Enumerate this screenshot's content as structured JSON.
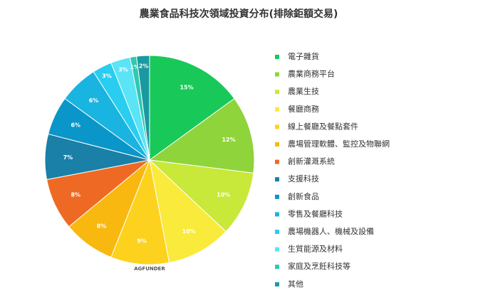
{
  "chart_data": {
    "type": "pie",
    "title": "農業食品科技次領域投資分布(排除鉅額交易)",
    "categories": [
      "電子雜貨",
      "農業商務平台",
      "農業生技",
      "餐廳商務",
      "線上餐廳及餐點套件",
      "農場管理軟體、監控及物聯網",
      "創新灌溉系統",
      "支援科技",
      "創新食品",
      "零售及餐廳科技",
      "農場機器人、機械及設備",
      "生質能源及材料",
      "家庭及烹飪科技等",
      "其他"
    ],
    "values": [
      15,
      12,
      10,
      10,
      9,
      8,
      8,
      7,
      6,
      6,
      3,
      3,
      1,
      2
    ],
    "value_labels": [
      "15%",
      "12%",
      "10%",
      "10%",
      "9%",
      "8%",
      "8%",
      "7%",
      "6%",
      "6%",
      "3%",
      "3%",
      "1%",
      "2%"
    ],
    "colors": [
      "#18c95a",
      "#8fd43b",
      "#c8e83a",
      "#f9ea3c",
      "#fdd21f",
      "#f8b80f",
      "#ee6a24",
      "#1a80a8",
      "#0a96c8",
      "#1ab4e0",
      "#29cdef",
      "#5ae4f6",
      "#2fc8b0",
      "#1a9aa0"
    ],
    "legend": "right",
    "watermark": "AGFUNDER"
  }
}
